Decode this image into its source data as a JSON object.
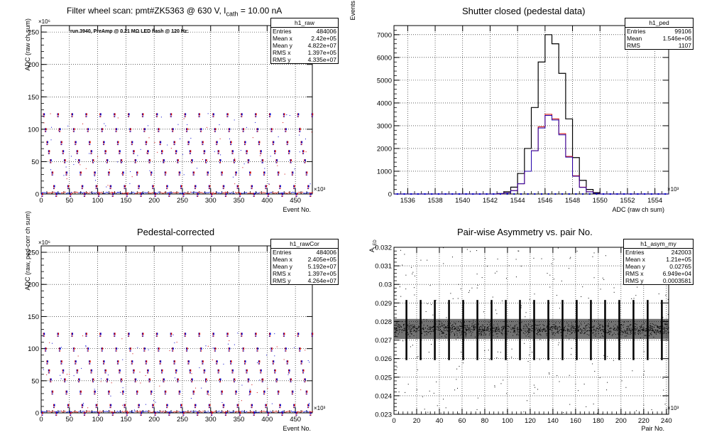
{
  "chart_data": [
    {
      "type": "scatter",
      "title": "Filter wheel scan: pmt#ZK5363 @   630 V, I",
      "title_sub": "cath",
      "title_tail": " = 10.00 nA",
      "annotation": "run.3940, PreAmp @ 0.21 MΩ LED flash @  120 Hz:",
      "xlabel": "Event No.",
      "ylabel": "ADC (raw ch sum)",
      "x_exponent": "×10³",
      "y_exponent": "×10⁶",
      "xlim": [
        0,
        480
      ],
      "ylim": [
        0,
        260
      ],
      "xticks": [
        "0",
        "50",
        "100",
        "150",
        "200",
        "250",
        "300",
        "350",
        "400",
        "450"
      ],
      "yticks": [
        "0",
        "50",
        "100",
        "150",
        "200",
        "250"
      ],
      "grid": true,
      "cycle_length": 25,
      "steps": [
        {
          "start": 0,
          "end": 3,
          "value": 0
        },
        {
          "start": 3,
          "end": 6,
          "value": 123
        },
        {
          "start": 6,
          "end": 9,
          "value": 100
        },
        {
          "start": 9,
          "end": 12,
          "value": 80
        },
        {
          "start": 12,
          "end": 15,
          "value": 66
        },
        {
          "start": 15,
          "end": 18,
          "value": 52
        },
        {
          "start": 18,
          "end": 21,
          "value": 33
        },
        {
          "start": 21,
          "end": 24,
          "value": 12
        }
      ],
      "stats": {
        "name": "h1_raw",
        "rows": [
          {
            "label": "Entries",
            "value": "484006"
          },
          {
            "label": "Mean x",
            "value": "2.42e+05"
          },
          {
            "label": "Mean y",
            "value": "4.822e+07"
          },
          {
            "label": "RMS x",
            "value": "1.397e+05"
          },
          {
            "label": "RMS y",
            "value": "4.335e+07"
          }
        ]
      }
    },
    {
      "type": "histogram",
      "title": "Shutter closed (pedestal data)",
      "xlabel": "ADC (raw ch sum)",
      "ylabel": "Events",
      "x_exponent": "×10³",
      "xlim": [
        1535,
        1555
      ],
      "ylim": [
        0,
        7400
      ],
      "xticks": [
        "1536",
        "1538",
        "1540",
        "1542",
        "1544",
        "1546",
        "1548",
        "1550",
        "1552",
        "1554"
      ],
      "yticks": [
        "0",
        "1000",
        "2000",
        "3000",
        "4000",
        "5000",
        "6000",
        "7000"
      ],
      "grid": true,
      "bin_centers": [
        1542.75,
        1543.25,
        1543.75,
        1544.25,
        1544.75,
        1545.25,
        1545.75,
        1546.25,
        1546.75,
        1547.25,
        1547.75,
        1548.25,
        1548.75,
        1549.25,
        1549.75
      ],
      "series": [
        {
          "values": [
            20,
            100,
            300,
            900,
            2000,
            3800,
            5800,
            7000,
            6600,
            5300,
            3300,
            1600,
            600,
            200,
            60
          ]
        },
        {
          "values": [
            10,
            50,
            150,
            450,
            1000,
            1900,
            2950,
            3500,
            3300,
            2650,
            1650,
            800,
            300,
            100,
            30
          ]
        },
        {
          "values": [
            10,
            50,
            150,
            450,
            1000,
            1900,
            2900,
            3450,
            3250,
            2600,
            1620,
            780,
            290,
            95,
            28
          ]
        }
      ],
      "stats": {
        "name": "h1_ped",
        "rows": [
          {
            "label": "Entries",
            "value": "99106"
          },
          {
            "label": "Mean",
            "value": "1.546e+06"
          },
          {
            "label": "RMS",
            "value": "1107"
          }
        ]
      }
    },
    {
      "type": "scatter",
      "title": "Pedestal-corrected",
      "xlabel": "Event No.",
      "ylabel": "ADC (raw, ped-corr ch sum)",
      "x_exponent": "×10³",
      "y_exponent": "×10⁶",
      "xlim": [
        0,
        480
      ],
      "ylim": [
        0,
        260
      ],
      "xticks": [
        "0",
        "50",
        "100",
        "150",
        "200",
        "250",
        "300",
        "350",
        "400",
        "450"
      ],
      "yticks": [
        "0",
        "50",
        "100",
        "150",
        "200",
        "250"
      ],
      "grid": true,
      "stats": {
        "name": "h1_rawCor",
        "rows": [
          {
            "label": "Entries",
            "value": "484006"
          },
          {
            "label": "Mean x",
            "value": "2.405e+05"
          },
          {
            "label": "Mean y",
            "value": "5.192e+07"
          },
          {
            "label": "RMS x",
            "value": "1.397e+05"
          },
          {
            "label": "RMS y",
            "value": "4.264e+07"
          }
        ]
      }
    },
    {
      "type": "scatter",
      "title": "Pair-wise Asymmetry vs. pair No.",
      "xlabel": "Pair No.",
      "ylabel": "A",
      "ylabel_sub": "LED",
      "x_exponent": "×10³",
      "xlim": [
        0,
        242
      ],
      "ylim": [
        0.023,
        0.032
      ],
      "xticks": [
        "0",
        "20",
        "40",
        "60",
        "80",
        "100",
        "120",
        "140",
        "160",
        "180",
        "200",
        "220",
        "240"
      ],
      "yticks": [
        "0.023",
        "0.024",
        "0.025",
        "0.026",
        "0.027",
        "0.028",
        "0.029",
        "0.03",
        "0.031",
        "0.032"
      ],
      "grid": true,
      "band_center": 0.0276,
      "band_halfwidth": 0.0006,
      "spike_period": 12.5,
      "stats": {
        "name": "h1_asym_my",
        "rows": [
          {
            "label": "Entries",
            "value": "242003"
          },
          {
            "label": "Mean x",
            "value": "1.21e+05"
          },
          {
            "label": "Mean y",
            "value": "0.02765"
          },
          {
            "label": "RMS x",
            "value": "6.949e+04"
          },
          {
            "label": "RMS y",
            "value": "0.0003581"
          }
        ]
      }
    }
  ]
}
